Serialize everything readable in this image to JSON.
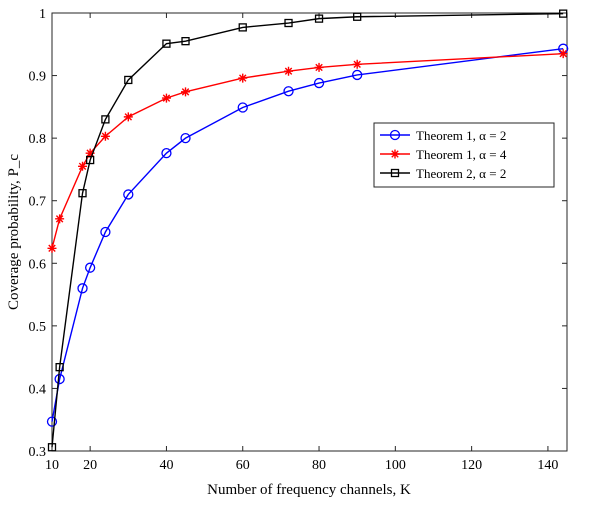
{
  "chart_data": {
    "type": "line",
    "title": "",
    "xlabel": "Number of frequency channels, K",
    "ylabel": "Coverage probability, P_c",
    "xlim": [
      10,
      145
    ],
    "ylim": [
      0.3,
      1.0
    ],
    "xticks": [
      "10",
      "20",
      "40",
      "60",
      "80",
      "100",
      "120",
      "140"
    ],
    "yticks": [
      "0.3",
      "0.4",
      "0.5",
      "0.6",
      "0.7",
      "0.8",
      "0.9",
      "1"
    ],
    "legend_position": "right-middle",
    "grid": false,
    "series": [
      {
        "name": "Theorem 1, α = 2",
        "color": "#0000ff",
        "marker": "circle",
        "x": [
          10,
          12,
          18,
          20,
          24,
          30,
          40,
          45,
          60,
          72,
          80,
          90,
          144
        ],
        "y": [
          0.347,
          0.415,
          0.56,
          0.593,
          0.65,
          0.71,
          0.776,
          0.8,
          0.849,
          0.875,
          0.888,
          0.901,
          0.943
        ]
      },
      {
        "name": "Theorem 1, α = 4",
        "color": "#ff0000",
        "marker": "star",
        "x": [
          10,
          12,
          18,
          20,
          24,
          30,
          40,
          45,
          60,
          72,
          80,
          90,
          144
        ],
        "y": [
          0.624,
          0.671,
          0.755,
          0.776,
          0.803,
          0.834,
          0.864,
          0.874,
          0.896,
          0.907,
          0.913,
          0.918,
          0.935
        ]
      },
      {
        "name": "Theorem 2, α = 2",
        "color": "#000000",
        "marker": "square",
        "x": [
          10,
          12,
          18,
          20,
          24,
          30,
          40,
          45,
          60,
          72,
          80,
          90,
          144
        ],
        "y": [
          0.306,
          0.434,
          0.712,
          0.765,
          0.83,
          0.893,
          0.951,
          0.955,
          0.977,
          0.984,
          0.991,
          0.994,
          0.999
        ]
      }
    ]
  }
}
